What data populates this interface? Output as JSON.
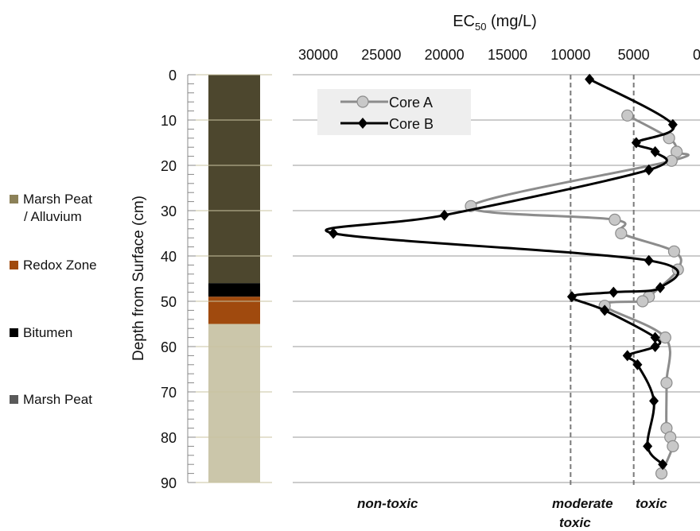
{
  "left_legend": [
    {
      "line1": "Marsh Peat",
      "line2": "/ Alluvium",
      "color": "#8c8158"
    },
    {
      "line1": "Redox Zone",
      "line2": "",
      "color": "#a04a0e"
    },
    {
      "line1": "Bitumen",
      "line2": "",
      "color": "#000000"
    },
    {
      "line1": "Marsh Peat",
      "line2": "",
      "color": "#5a5a5a"
    }
  ],
  "column": {
    "layers": [
      {
        "top": 0,
        "bottom": 46,
        "color": "#4d472e"
      },
      {
        "top": 46,
        "bottom": 49,
        "color": "#000000"
      },
      {
        "top": 49,
        "bottom": 55,
        "color": "#a04a0e"
      },
      {
        "top": 55,
        "bottom": 90,
        "color": "#cbc6aa"
      }
    ]
  },
  "categories": {
    "non_toxic": "non-toxic",
    "moderate_1": "moderate",
    "moderate_2": "toxic",
    "toxic": "toxic"
  },
  "chart_data": {
    "type": "line",
    "title": "",
    "xlabel": "EC50 (mg/L)",
    "xlabel_main": "EC",
    "xlabel_sub": "50",
    "xlabel_unit": " (mg/L)",
    "ylabel": "Depth from Surface (cm)",
    "xlim": [
      0,
      30000
    ],
    "x_reversed": true,
    "x_axis_position": "top",
    "xticks": [
      30000,
      25000,
      20000,
      15000,
      10000,
      5000,
      0
    ],
    "xtick_labels": [
      "30000",
      "25000",
      "20000",
      "15000",
      "10000",
      "5000",
      "0"
    ],
    "ylim": [
      0,
      90
    ],
    "y_reversed": true,
    "yticks": [
      0,
      10,
      20,
      30,
      40,
      50,
      60,
      70,
      80,
      90
    ],
    "ytick_labels": [
      "0",
      "10",
      "20",
      "30",
      "40",
      "50",
      "60",
      "70",
      "80",
      "90"
    ],
    "grid": "horizontal",
    "legend_position": "top-left",
    "threshold_lines": [
      10000,
      5000
    ],
    "series": [
      {
        "name": "Core A",
        "color": "#8c8c8c",
        "marker": "circle",
        "points": [
          {
            "x": 5500,
            "y": 9
          },
          {
            "x": 2200,
            "y": 14
          },
          {
            "x": 1600,
            "y": 17
          },
          {
            "x": 2000,
            "y": 19
          },
          {
            "x": 17900,
            "y": 29
          },
          {
            "x": 6500,
            "y": 32
          },
          {
            "x": 6000,
            "y": 35
          },
          {
            "x": 1800,
            "y": 39
          },
          {
            "x": 1500,
            "y": 43
          },
          {
            "x": 3800,
            "y": 49
          },
          {
            "x": 4300,
            "y": 50
          },
          {
            "x": 7300,
            "y": 51
          },
          {
            "x": 2500,
            "y": 58
          },
          {
            "x": 2400,
            "y": 68
          },
          {
            "x": 2400,
            "y": 78
          },
          {
            "x": 2100,
            "y": 80
          },
          {
            "x": 1900,
            "y": 82
          },
          {
            "x": 2800,
            "y": 88
          }
        ]
      },
      {
        "name": "Core B",
        "color": "#000000",
        "marker": "diamond",
        "points": [
          {
            "x": 8500,
            "y": 1
          },
          {
            "x": 1900,
            "y": 11
          },
          {
            "x": 4800,
            "y": 15
          },
          {
            "x": 3300,
            "y": 17
          },
          {
            "x": 3800,
            "y": 21
          },
          {
            "x": 20000,
            "y": 31
          },
          {
            "x": 28800,
            "y": 35
          },
          {
            "x": 3800,
            "y": 41
          },
          {
            "x": 2900,
            "y": 47
          },
          {
            "x": 6600,
            "y": 48
          },
          {
            "x": 9900,
            "y": 49
          },
          {
            "x": 7300,
            "y": 52
          },
          {
            "x": 3300,
            "y": 58
          },
          {
            "x": 3300,
            "y": 60
          },
          {
            "x": 5500,
            "y": 62
          },
          {
            "x": 4700,
            "y": 64
          },
          {
            "x": 3400,
            "y": 72
          },
          {
            "x": 3900,
            "y": 82
          },
          {
            "x": 2700,
            "y": 86
          }
        ]
      }
    ]
  }
}
